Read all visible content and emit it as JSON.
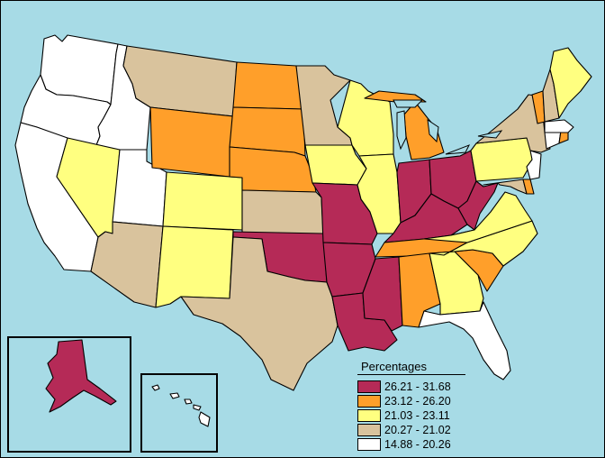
{
  "legend": {
    "title": "Percentages",
    "classes": [
      {
        "label": "26.21 - 31.68",
        "color": "#b52a57"
      },
      {
        "label": "23.12 - 26.20",
        "color": "#ff9f2a"
      },
      {
        "label": "21.03 - 23.11",
        "color": "#ffff80"
      },
      {
        "label": "20.27 - 21.02",
        "color": "#d9c39d"
      },
      {
        "label": "14.88 - 20.26",
        "color": "#ffffff"
      }
    ]
  },
  "colors": {
    "water": "#a7dbe6",
    "border": "#000000"
  },
  "states": [
    {
      "id": "WA",
      "class": 4
    },
    {
      "id": "OR",
      "class": 4
    },
    {
      "id": "CA",
      "class": 4
    },
    {
      "id": "ID",
      "class": 4
    },
    {
      "id": "NV",
      "class": 2
    },
    {
      "id": "UT",
      "class": 4
    },
    {
      "id": "AZ",
      "class": 3
    },
    {
      "id": "MT",
      "class": 3
    },
    {
      "id": "WY",
      "class": 1
    },
    {
      "id": "CO",
      "class": 2
    },
    {
      "id": "NM",
      "class": 2
    },
    {
      "id": "ND",
      "class": 1
    },
    {
      "id": "SD",
      "class": 1
    },
    {
      "id": "NE",
      "class": 1
    },
    {
      "id": "KS",
      "class": 3
    },
    {
      "id": "OK",
      "class": 0
    },
    {
      "id": "TX",
      "class": 3
    },
    {
      "id": "MN",
      "class": 3
    },
    {
      "id": "IA",
      "class": 2
    },
    {
      "id": "MO",
      "class": 0
    },
    {
      "id": "AR",
      "class": 0
    },
    {
      "id": "LA",
      "class": 0
    },
    {
      "id": "WI",
      "class": 2
    },
    {
      "id": "IL",
      "class": 2
    },
    {
      "id": "MI",
      "class": 1
    },
    {
      "id": "IN",
      "class": 0
    },
    {
      "id": "OH",
      "class": 0
    },
    {
      "id": "KY",
      "class": 0
    },
    {
      "id": "TN",
      "class": 1
    },
    {
      "id": "MS",
      "class": 0
    },
    {
      "id": "AL",
      "class": 1
    },
    {
      "id": "GA",
      "class": 2
    },
    {
      "id": "FL",
      "class": 4
    },
    {
      "id": "SC",
      "class": 1
    },
    {
      "id": "NC",
      "class": 2
    },
    {
      "id": "VA",
      "class": 2
    },
    {
      "id": "WV",
      "class": 0
    },
    {
      "id": "MD",
      "class": 3
    },
    {
      "id": "DE",
      "class": 1
    },
    {
      "id": "PA",
      "class": 2
    },
    {
      "id": "NJ",
      "class": 4
    },
    {
      "id": "NY",
      "class": 3
    },
    {
      "id": "CT",
      "class": 4
    },
    {
      "id": "RI",
      "class": 1
    },
    {
      "id": "MA",
      "class": 4
    },
    {
      "id": "VT",
      "class": 1
    },
    {
      "id": "NH",
      "class": 3
    },
    {
      "id": "ME",
      "class": 2
    },
    {
      "id": "AK",
      "class": 0
    },
    {
      "id": "HI",
      "class": 4
    }
  ]
}
